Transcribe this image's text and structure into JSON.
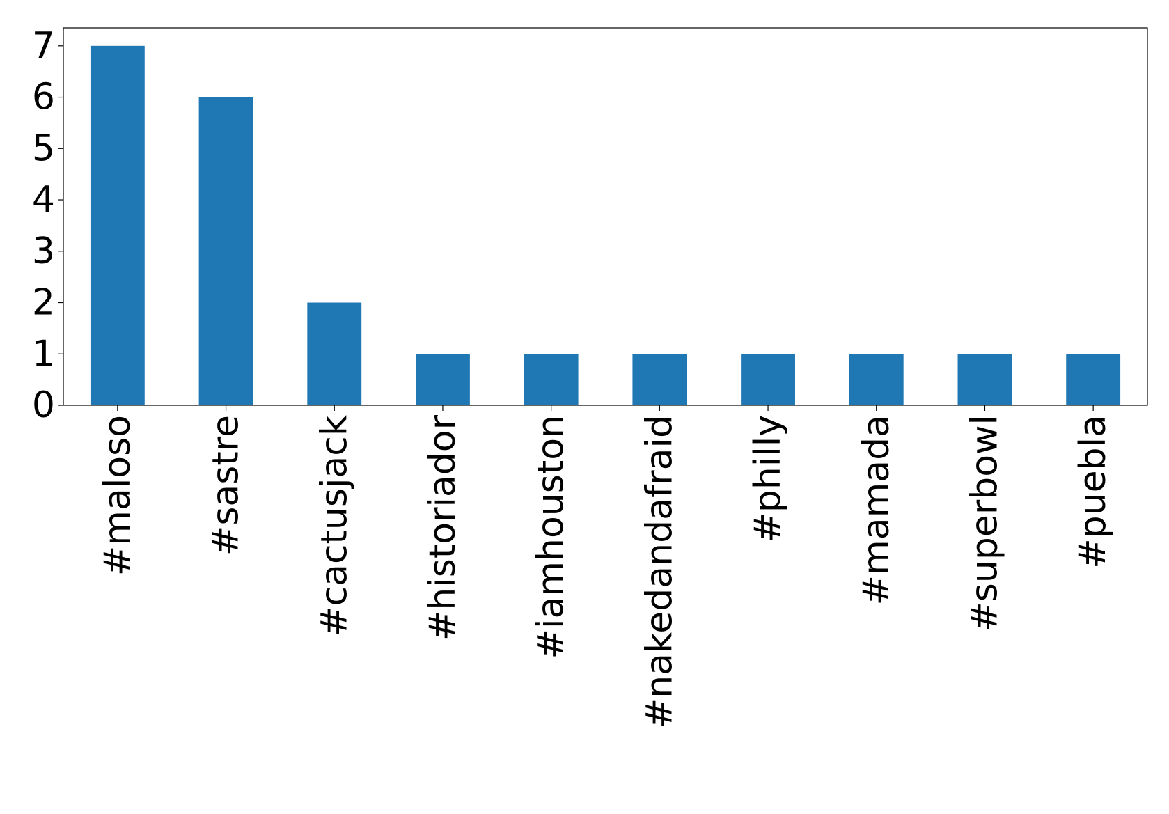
{
  "chart_data": {
    "type": "bar",
    "categories": [
      "#maloso",
      "#sastre",
      "#cactusjack",
      "#historiador",
      "#iamhouston",
      "#nakedandafraid",
      "#philly",
      "#mamada",
      "#superbowl",
      "#puebla"
    ],
    "values": [
      7,
      6,
      2,
      1,
      1,
      1,
      1,
      1,
      1,
      1
    ],
    "color": "#1f77b4",
    "ylim": [
      0,
      7.35
    ],
    "yticks": [
      0,
      1,
      2,
      3,
      4,
      5,
      6,
      7
    ],
    "grid": false
  }
}
